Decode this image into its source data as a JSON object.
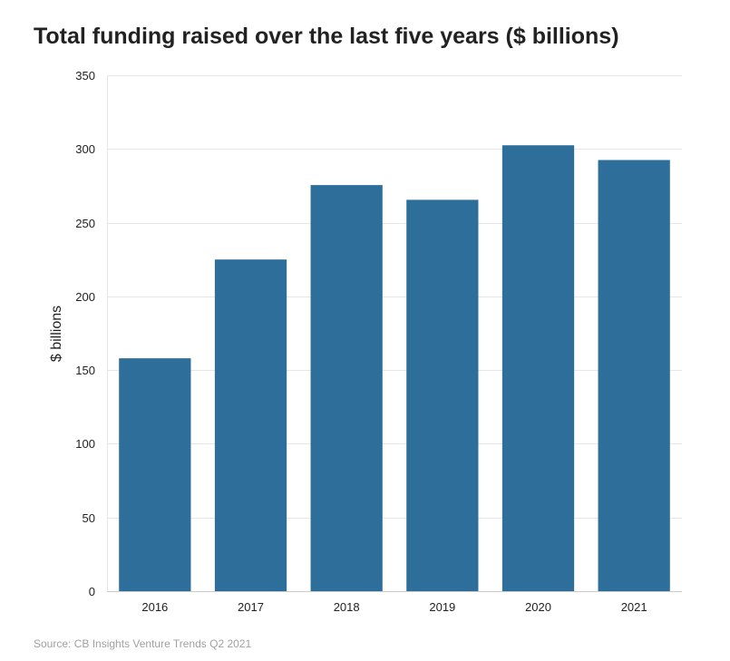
{
  "chart_data": {
    "type": "bar",
    "title": "Total funding raised over the last five years ($ billions)",
    "xlabel": "",
    "ylabel": "$ billions",
    "categories": [
      "2016",
      "2017",
      "2018",
      "2019",
      "2020",
      "2021"
    ],
    "values": [
      158,
      225,
      275.5,
      265.5,
      302.5,
      292.5
    ],
    "ylim": [
      0,
      350
    ],
    "yticks": [
      0,
      50,
      100,
      150,
      200,
      250,
      300,
      350
    ],
    "grid": true,
    "bar_color": "#2d6e9b",
    "source": "Source: CB Insights Venture Trends Q2 2021"
  }
}
